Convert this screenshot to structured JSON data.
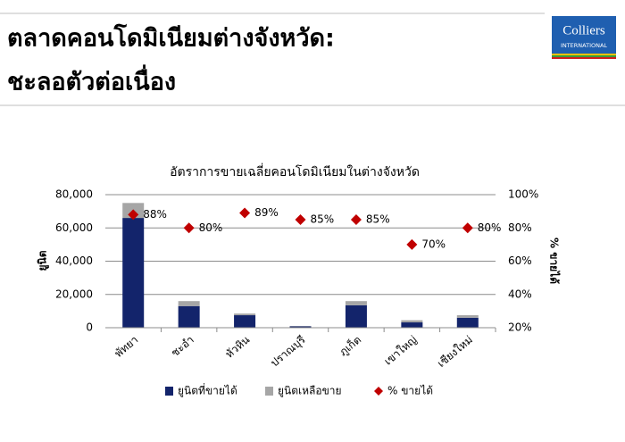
{
  "header": {
    "title_lines": [
      "ตลาดคอนโดมิเนียมต่างจังหวัด:",
      "ชะลอตัวต่อเนื่อง"
    ],
    "logo": {
      "name": "Colliers",
      "sub": "INTERNATIONAL"
    }
  },
  "chart_data": {
    "type": "bar",
    "stacked": true,
    "title": "อัตราการขายเฉลี่ยคอนโดมิเนียมในต่างจังหวัด",
    "y_label": "ยูนิต",
    "y2_label": "% ขายได้",
    "categories": [
      "พัทยา",
      "ชะอำ",
      "หัวหิน",
      "ปราณบุรี",
      "ภูเก็ต",
      "เขาใหญ่",
      "เชียงใหม่"
    ],
    "series": [
      {
        "name": "ยูนิตที่ขายได้",
        "color": "#13246b",
        "values": [
          66000,
          13000,
          7500,
          800,
          13500,
          3200,
          6000
        ]
      },
      {
        "name": "ยูนิตเหลือขาย",
        "color": "#a6a6a6",
        "values": [
          9000,
          3000,
          1000,
          200,
          2500,
          1300,
          1500
        ]
      },
      {
        "name": "% ขายได้",
        "type": "scatter",
        "axis": "y2",
        "color": "#c00000",
        "values": [
          88,
          80,
          89,
          85,
          85,
          70,
          80
        ],
        "value_labels": [
          "88%",
          "80%",
          "89%",
          "85%",
          "85%",
          "70%",
          "80%"
        ]
      }
    ],
    "ylim": [
      0,
      80000
    ],
    "yticks": [
      0,
      {
        "value": 20000,
        "label": "20,000"
      },
      {
        "value": 40000,
        "label": "40,000"
      },
      {
        "value": 60000,
        "label": "60,000"
      },
      {
        "value": 80000,
        "label": "80,000"
      }
    ],
    "y2lim": [
      20,
      100
    ],
    "y2ticks": [
      {
        "value": 20,
        "label": "20%"
      },
      {
        "value": 40,
        "label": "40%"
      },
      {
        "value": 60,
        "label": "60%"
      },
      {
        "value": 80,
        "label": "80%"
      },
      {
        "value": 100,
        "label": "100%"
      }
    ],
    "grid": true
  }
}
